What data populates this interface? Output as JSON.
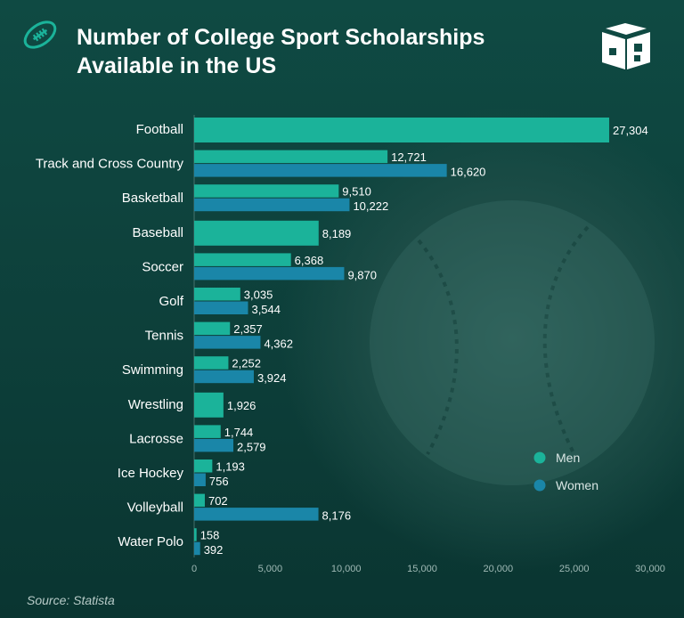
{
  "header": {
    "title_line1": "Number of College Sport Scholarships",
    "title_line2": "Available in the US",
    "icon": "football-icon",
    "brand_icon": "book-logo-icon"
  },
  "source": "Source: Statista",
  "colors": {
    "men": "#1bb39a",
    "women": "#1a86a8",
    "background": "#0c3d38"
  },
  "chart_data": {
    "type": "bar",
    "orientation": "horizontal",
    "title": "Number of College Sport Scholarships Available in the US",
    "xlabel": "",
    "ylabel": "",
    "xlim": [
      0,
      30000
    ],
    "xticks": [
      0,
      5000,
      10000,
      15000,
      20000,
      25000,
      30000
    ],
    "xtick_labels": [
      "0",
      "5,000",
      "10,000",
      "15,000",
      "20,000",
      "25,000",
      "30,000"
    ],
    "legend": [
      "Men",
      "Women"
    ],
    "legend_position": "right",
    "categories": [
      "Football",
      "Track and Cross Country",
      "Basketball",
      "Baseball",
      "Soccer",
      "Golf",
      "Tennis",
      "Swimming",
      "Wrestling",
      "Lacrosse",
      "Ice Hockey",
      "Volleyball",
      "Water Polo"
    ],
    "series": [
      {
        "name": "Men",
        "values": [
          27304,
          12721,
          9510,
          8189,
          6368,
          3035,
          2357,
          2252,
          1926,
          1744,
          1193,
          702,
          158
        ],
        "labels": [
          "27,304",
          "12,721",
          "9,510",
          "8,189",
          "6,368",
          "3,035",
          "2,357",
          "2,252",
          "1,926",
          "1,744",
          "1,193",
          "702",
          "158"
        ]
      },
      {
        "name": "Women",
        "values": [
          null,
          16620,
          10222,
          null,
          9870,
          3544,
          4362,
          3924,
          null,
          2579,
          756,
          8176,
          392
        ],
        "labels": [
          null,
          "16,620",
          "10,222",
          null,
          "9,870",
          "3,544",
          "4,362",
          "3,924",
          null,
          "2,579",
          "756",
          "8,176",
          "392"
        ]
      }
    ]
  }
}
